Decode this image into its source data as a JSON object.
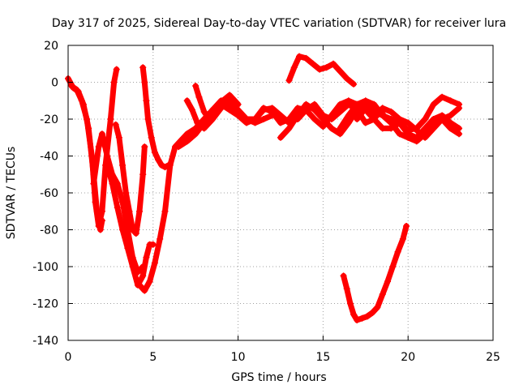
{
  "chart_data": {
    "type": "line",
    "title": "Day 317 of 2025, Sidereal Day-to-day VTEC variation (SDTVAR) for receiver lura",
    "xlabel": "GPS time / hours",
    "ylabel": "SDTVAR / TECUs",
    "xlim": [
      0,
      25
    ],
    "ylim": [
      -140,
      20
    ],
    "xticks": [
      0,
      5,
      10,
      15,
      20,
      25
    ],
    "yticks": [
      -140,
      -120,
      -100,
      -80,
      -60,
      -40,
      -20,
      0,
      20
    ],
    "grid": true,
    "legend": "none",
    "marker": "plus",
    "colors": {
      "series": "#ff0000",
      "grid": "#a0a0a0",
      "axis": "#000000"
    },
    "series": [
      {
        "x": [
          0.0,
          0.3,
          0.6,
          0.9,
          1.2,
          1.5,
          1.7,
          1.9,
          2.0
        ],
        "y": [
          2,
          -3,
          -5,
          -12,
          -25,
          -50,
          -70,
          -80,
          -75
        ]
      },
      {
        "x": [
          0.2,
          0.5,
          0.8,
          1.1,
          1.4,
          1.6,
          1.8,
          2.0,
          2.2,
          2.5,
          2.7,
          2.85
        ],
        "y": [
          -2,
          -4,
          -10,
          -20,
          -40,
          -65,
          -78,
          -70,
          -45,
          -20,
          0,
          7
        ]
      },
      {
        "x": [
          1.5,
          1.8,
          2.0,
          2.3,
          2.6,
          2.9,
          3.2,
          3.5,
          3.8,
          4.1,
          4.4
        ],
        "y": [
          -55,
          -35,
          -28,
          -40,
          -50,
          -55,
          -65,
          -80,
          -95,
          -103,
          -100
        ]
      },
      {
        "x": [
          2.8,
          3.0,
          3.2,
          3.4,
          3.6,
          3.8,
          4.0,
          4.2,
          4.4,
          4.5
        ],
        "y": [
          -23,
          -30,
          -45,
          -60,
          -70,
          -80,
          -82,
          -70,
          -50,
          -35
        ]
      },
      {
        "x": [
          2.3,
          2.6,
          2.9,
          3.2,
          3.5,
          3.8,
          4.1,
          4.4,
          4.6,
          4.8,
          5.0
        ],
        "y": [
          -45,
          -55,
          -68,
          -80,
          -90,
          -100,
          -110,
          -105,
          -95,
          -88,
          -88
        ]
      },
      {
        "x": [
          4.4,
          4.5,
          4.6,
          4.7,
          4.9,
          5.1,
          5.3,
          5.5,
          5.7,
          5.9
        ],
        "y": [
          8,
          0,
          -10,
          -20,
          -30,
          -38,
          -42,
          -45,
          -46,
          -45
        ]
      },
      {
        "x": [
          4.2,
          4.5,
          4.8,
          5.1,
          5.4,
          5.7,
          6.0,
          6.3,
          6.6,
          7.0,
          7.5,
          8.0,
          8.5,
          9.0,
          9.5,
          10.0,
          10.5,
          11.0,
          11.5,
          12.0
        ],
        "y": [
          -110,
          -113,
          -108,
          -98,
          -85,
          -70,
          -45,
          -35,
          -32,
          -28,
          -25,
          -20,
          -15,
          -12,
          -15,
          -18,
          -20,
          -22,
          -20,
          -18
        ]
      },
      {
        "x": [
          6.5,
          7.0,
          7.5,
          8.0,
          8.5,
          9.0,
          9.5,
          10.0,
          10.5,
          11.0,
          11.5,
          12.0,
          12.5,
          13.0,
          13.5,
          14.0,
          14.5,
          15.0,
          15.5,
          16.0,
          16.5,
          17.0,
          17.5,
          18.0,
          18.5,
          19.0,
          19.5,
          20.0,
          20.5,
          21.0,
          21.5,
          22.0,
          22.5,
          23.0
        ],
        "y": [
          -35,
          -32,
          -28,
          -22,
          -15,
          -10,
          -12,
          -18,
          -22,
          -20,
          -14,
          -16,
          -22,
          -20,
          -14,
          -15,
          -20,
          -24,
          -18,
          -12,
          -10,
          -12,
          -15,
          -20,
          -25,
          -25,
          -22,
          -28,
          -30,
          -25,
          -20,
          -18,
          -22,
          -25
        ]
      },
      {
        "x": [
          7.0,
          7.3,
          7.6,
          8.0,
          8.5,
          9.0,
          9.5,
          10.0,
          10.5,
          11.0,
          11.5,
          12.0,
          12.5,
          13.0
        ],
        "y": [
          -10,
          -15,
          -22,
          -25,
          -20,
          -14,
          -10,
          -15,
          -20,
          -20,
          -15,
          -14,
          -18,
          -22
        ]
      },
      {
        "x": [
          7.5,
          7.7,
          8.0,
          8.3,
          8.7,
          9.1,
          9.5,
          10.0
        ],
        "y": [
          -2,
          -8,
          -16,
          -20,
          -17,
          -10,
          -7,
          -12
        ]
      },
      {
        "x": [
          12.5,
          13.0,
          13.5,
          14.0,
          14.5,
          15.0,
          15.5,
          16.0,
          16.5,
          17.0,
          17.5,
          18.0,
          18.5
        ],
        "y": [
          -30,
          -25,
          -18,
          -12,
          -15,
          -20,
          -25,
          -28,
          -22,
          -15,
          -12,
          -14,
          -17
        ]
      },
      {
        "x": [
          13.5,
          14.0,
          14.5,
          15.0,
          15.5,
          16.0,
          16.5,
          17.0,
          17.5,
          18.0,
          18.5,
          19.0,
          19.5,
          20.0,
          20.5,
          21.0,
          21.5,
          22.0,
          22.5,
          23.0
        ],
        "y": [
          -20,
          -15,
          -12,
          -18,
          -20,
          -16,
          -12,
          -15,
          -22,
          -20,
          -14,
          -16,
          -20,
          -22,
          -26,
          -30,
          -25,
          -20,
          -18,
          -14
        ]
      },
      {
        "x": [
          16.0,
          16.5,
          17.0,
          17.5,
          18.0,
          18.5,
          19.0,
          19.5,
          20.0,
          20.5,
          21.0,
          21.5,
          22.0,
          22.5,
          23.0
        ],
        "y": [
          -25,
          -18,
          -12,
          -10,
          -12,
          -18,
          -20,
          -22,
          -26,
          -25,
          -20,
          -12,
          -8,
          -10,
          -12
        ]
      },
      {
        "x": [
          17.0,
          17.5,
          18.0,
          18.5,
          19.0,
          19.5,
          20.0,
          20.5,
          21.0,
          21.5,
          22.0,
          22.5,
          23.0
        ],
        "y": [
          -20,
          -14,
          -16,
          -18,
          -22,
          -28,
          -30,
          -32,
          -28,
          -22,
          -20,
          -25,
          -28
        ]
      },
      {
        "x": [
          13.0,
          13.3,
          13.6,
          14.0,
          14.4,
          14.8,
          15.2,
          15.6,
          16.0,
          16.4,
          16.8
        ],
        "y": [
          1,
          8,
          14,
          13,
          10,
          7,
          8,
          10,
          6,
          2,
          -1
        ]
      },
      {
        "x": [
          16.2,
          16.4,
          16.6,
          16.8,
          17.0,
          17.3,
          17.6,
          17.9,
          18.2,
          18.5,
          18.8,
          19.1,
          19.4,
          19.7,
          19.9
        ],
        "y": [
          -105,
          -112,
          -120,
          -126,
          -129,
          -128,
          -127,
          -125,
          -122,
          -115,
          -108,
          -100,
          -92,
          -85,
          -78
        ]
      }
    ]
  }
}
